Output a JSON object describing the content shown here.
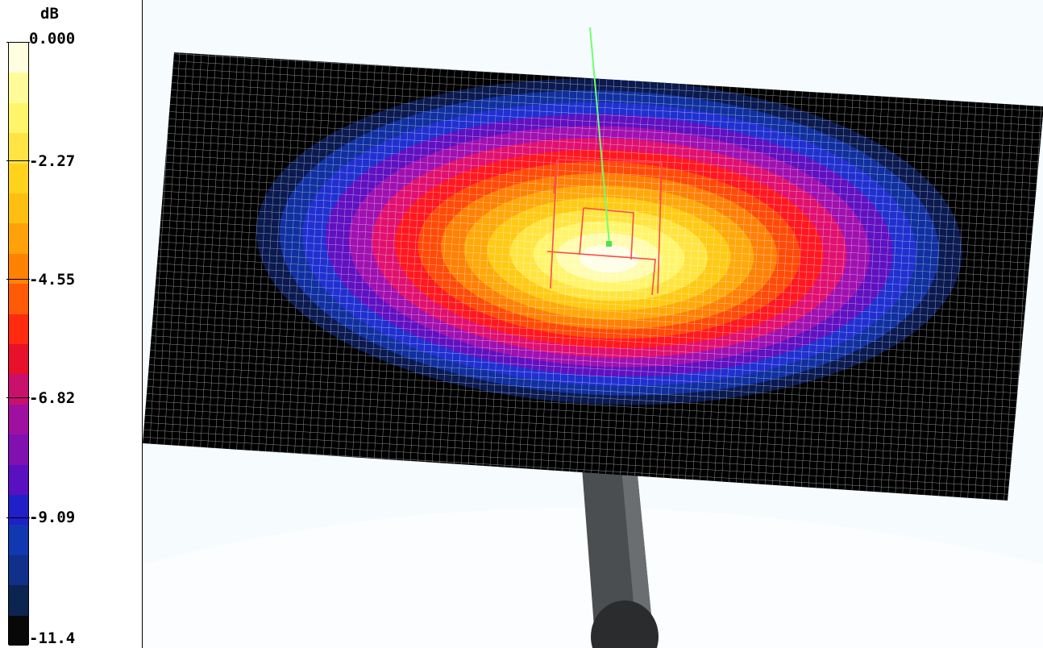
{
  "legend": {
    "unit": "dB",
    "labels": [
      "0.000",
      "-2.27",
      "-4.55",
      "-6.82",
      "-9.09",
      "-11.4"
    ],
    "color_bands": [
      "#fffee0",
      "#fffb9a",
      "#fff56a",
      "#ffe443",
      "#ffd21e",
      "#ffbf10",
      "#ffa20a",
      "#ff8205",
      "#ff5a08",
      "#ff2a10",
      "#e8102a",
      "#c8106c",
      "#a010a0",
      "#8010b0",
      "#5a10c0",
      "#2020c8",
      "#1038b0",
      "#10308a",
      "#0c2550",
      "#080808"
    ]
  },
  "scene": {
    "contour_colors": [
      "#0a1a50",
      "#1030a0",
      "#2030d0",
      "#6010c0",
      "#a010b0",
      "#e01070",
      "#ff1820",
      "#ff4a08",
      "#ff8005",
      "#ffa80a",
      "#ffca14",
      "#ffe440",
      "#fff56a",
      "#fffcb0",
      "#fffee8"
    ],
    "grid_background": "#000000",
    "grid_line_color": "#ffffff",
    "probe_color": "#ff4040",
    "vector_color": "#70ff70",
    "post_color": "#4a4e50",
    "background": "#f6fbfd"
  }
}
